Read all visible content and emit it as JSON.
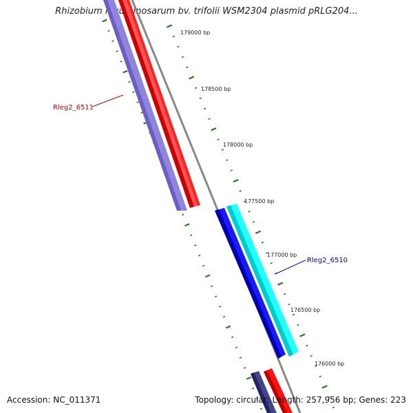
{
  "title": "Rhizobium leguminosarum bv. trifolii WSM2304 plasmid pRLG204...",
  "accession_text": "Accession: NC_011371",
  "summary_text": "Topology: circular; Length: 257,956 bp; Genes: 223",
  "ticks": [
    {
      "label": "179000 bp"
    },
    {
      "label": "178500 bp"
    },
    {
      "label": "178000 bp"
    },
    {
      "label": "177500 bp"
    },
    {
      "label": "177000 bp"
    },
    {
      "label": "176500 bp"
    },
    {
      "label": "176000 bp"
    }
  ],
  "genes": [
    {
      "label": "Rleg2_6511",
      "color": "#cc0000"
    },
    {
      "label": "Rleg2_6510",
      "color": "#0000cc"
    }
  ],
  "colors": {
    "backbone": "#888888",
    "tick": "#1e7a1e",
    "red_feature": "#ff0000",
    "purple_feature": "#7766cc",
    "blue_feature": "#0000ee",
    "cyan_feature": "#00eeee",
    "navy_feature": "#333388"
  }
}
